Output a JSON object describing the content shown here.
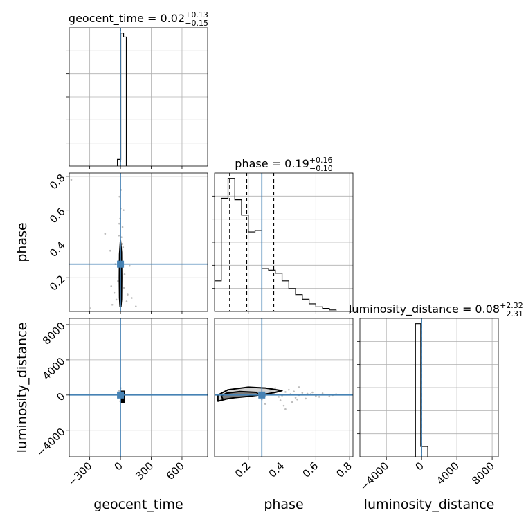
{
  "chart_data": {
    "type": "corner",
    "truth_color": "#4682b4",
    "params": [
      {
        "name": "geocent_time",
        "label": "geocent_time",
        "range": [
          -500,
          850
        ],
        "ticks": [
          -300,
          0,
          300,
          600
        ],
        "tick_labels": [
          "−300",
          "0",
          "300",
          "600"
        ],
        "truth": 0,
        "title": {
          "prefix": "geocent_time = ",
          "median": "0.02",
          "plus": "+0.13",
          "minus": "−0.15"
        },
        "quantiles": [
          -0.13,
          0.02,
          0.15
        ],
        "hist": {
          "edges": [
            -30,
            -3,
            3,
            30,
            57
          ],
          "counts": [
            0.05,
            0.05,
            1.0,
            0.97
          ]
        }
      },
      {
        "name": "phase",
        "label": "phase",
        "range": [
          0.0,
          0.82
        ],
        "ticks": [
          0.2,
          0.4,
          0.6,
          0.8
        ],
        "tick_labels": [
          "0.2",
          "0.4",
          "0.6",
          "0.8"
        ],
        "truth": 0.28,
        "title": {
          "prefix": "phase = ",
          "median": "0.19",
          "plus": "+0.16",
          "minus": "−0.10"
        },
        "quantiles": [
          0.09,
          0.19,
          0.35
        ],
        "hist": {
          "edges": [
            0.0,
            0.04,
            0.08,
            0.12,
            0.16,
            0.2,
            0.24,
            0.28,
            0.32,
            0.36,
            0.4,
            0.44,
            0.48,
            0.52,
            0.56,
            0.6,
            0.64,
            0.68,
            0.72,
            0.76,
            0.8
          ],
          "counts": [
            0.2,
            0.74,
            0.87,
            0.73,
            0.63,
            0.52,
            0.53,
            0.28,
            0.27,
            0.25,
            0.2,
            0.15,
            0.11,
            0.08,
            0.05,
            0.03,
            0.02,
            0.01,
            0.0,
            0.0
          ]
        }
      },
      {
        "name": "luminosity_distance",
        "label": "luminosity_distance",
        "range": [
          -7000,
          8700
        ],
        "ticks": [
          -4000,
          0,
          4000,
          8000
        ],
        "tick_labels": [
          "−4000",
          "0",
          "4000",
          "8000"
        ],
        "truth": 0,
        "title": {
          "prefix": "luminosity_distance = ",
          "median": "0.08",
          "plus": "+2.32",
          "minus": "−2.31"
        },
        "quantiles": [
          -2.2,
          0.08,
          2.4
        ],
        "hist": {
          "edges": [
            -700,
            -100,
            0,
            700
          ],
          "counts": [
            0.9,
            0.07,
            0.07
          ]
        }
      }
    ],
    "y_axis_ticks": {
      "phase": {
        "ticks": [
          0.2,
          0.4,
          0.6,
          0.8
        ],
        "labels": [
          "0.2",
          "0.4",
          "0.6",
          "0.8"
        ]
      },
      "luminosity_distance": {
        "ticks": [
          -4000,
          0,
          4000,
          8000
        ],
        "labels": [
          "−4000",
          "0",
          "4000",
          "8000"
        ]
      }
    },
    "grid": true,
    "contours": {
      "geocent_time_phase": {
        "outer": [
          [
            0,
            0.42
          ],
          [
            10,
            0.35
          ],
          [
            12,
            0.2
          ],
          [
            10,
            0.07
          ],
          [
            4,
            0.03
          ],
          [
            -4,
            0.03
          ],
          [
            -9,
            0.08
          ],
          [
            -11,
            0.2
          ],
          [
            -9,
            0.34
          ]
        ],
        "inner": [
          [
            0,
            0.32
          ],
          [
            5,
            0.24
          ],
          [
            6,
            0.14
          ],
          [
            4,
            0.06
          ],
          [
            -3,
            0.06
          ],
          [
            -6,
            0.14
          ],
          [
            -5,
            0.24
          ]
        ]
      },
      "phase_luminosity_distance": {
        "outer": [
          [
            0.02,
            -700
          ],
          [
            0.1,
            -300
          ],
          [
            0.2,
            -100
          ],
          [
            0.3,
            100
          ],
          [
            0.36,
            300
          ],
          [
            0.4,
            500
          ],
          [
            0.3,
            800
          ],
          [
            0.2,
            900
          ],
          [
            0.08,
            600
          ],
          [
            0.02,
            0
          ]
        ],
        "inner": [
          [
            0.05,
            -500
          ],
          [
            0.12,
            -300
          ],
          [
            0.2,
            -150
          ],
          [
            0.26,
            0
          ],
          [
            0.25,
            300
          ],
          [
            0.15,
            400
          ],
          [
            0.07,
            200
          ],
          [
            0.04,
            -100
          ]
        ]
      }
    },
    "scatter_points": {
      "geocent_time_phase": [
        [
          -5,
          0.05
        ],
        [
          3,
          0.09
        ],
        [
          -8,
          0.17
        ],
        [
          6,
          0.25
        ],
        [
          -2,
          0.33
        ],
        [
          10,
          0.44
        ],
        [
          -12,
          0.52
        ],
        [
          2,
          0.61
        ],
        [
          -6,
          0.2
        ],
        [
          8,
          0.12
        ],
        [
          -40,
          0.07
        ],
        [
          35,
          0.14
        ],
        [
          -20,
          0.3
        ],
        [
          25,
          0.38
        ],
        [
          -80,
          0.04
        ],
        [
          70,
          0.1
        ],
        [
          -150,
          0.46
        ],
        [
          -50,
          0.28
        ],
        [
          40,
          0.22
        ],
        [
          5,
          0.72
        ],
        [
          -3,
          0.55
        ],
        [
          15,
          0.4
        ],
        [
          -25,
          0.18
        ],
        [
          60,
          0.06
        ],
        [
          -90,
          0.15
        ],
        [
          110,
          0.08
        ],
        [
          -10,
          0.68
        ],
        [
          20,
          0.5
        ],
        [
          -300,
          0.02
        ],
        [
          150,
          0.03
        ],
        [
          -480,
          0.78
        ],
        [
          -100,
          0.36
        ],
        [
          90,
          0.27
        ],
        [
          -60,
          0.11
        ],
        [
          30,
          0.6
        ],
        [
          -15,
          0.45
        ]
      ],
      "geocent_time_luminosity_distance": [
        [
          -5,
          -200
        ],
        [
          4,
          100
        ],
        [
          -8,
          300
        ],
        [
          6,
          -400
        ],
        [
          -12,
          500
        ],
        [
          10,
          -100
        ],
        [
          2,
          800
        ],
        [
          -3,
          -700
        ],
        [
          15,
          200
        ],
        [
          -20,
          -300
        ]
      ],
      "phase_luminosity_distance": [
        [
          0.1,
          0
        ],
        [
          0.2,
          150
        ],
        [
          0.3,
          -100
        ],
        [
          0.35,
          200
        ],
        [
          0.4,
          -50
        ],
        [
          0.45,
          100
        ],
        [
          0.5,
          0
        ],
        [
          0.55,
          150
        ],
        [
          0.6,
          -100
        ],
        [
          0.65,
          50
        ],
        [
          0.7,
          0
        ],
        [
          0.25,
          300
        ],
        [
          0.38,
          -200
        ],
        [
          0.42,
          350
        ],
        [
          0.48,
          -300
        ],
        [
          0.52,
          250
        ],
        [
          0.58,
          300
        ],
        [
          0.62,
          -200
        ],
        [
          0.33,
          500
        ],
        [
          0.28,
          -500
        ],
        [
          0.44,
          600
        ],
        [
          0.39,
          -600
        ],
        [
          0.47,
          400
        ],
        [
          0.54,
          -400
        ],
        [
          0.57,
          100
        ],
        [
          0.64,
          200
        ],
        [
          0.68,
          -150
        ],
        [
          0.72,
          100
        ],
        [
          0.36,
          800
        ],
        [
          0.41,
          -1200
        ],
        [
          0.5,
          900
        ],
        [
          0.46,
          -800
        ],
        [
          0.3,
          -1000
        ],
        [
          0.42,
          -1600
        ],
        [
          0.34,
          700
        ],
        [
          0.49,
          -500
        ]
      ]
    }
  }
}
